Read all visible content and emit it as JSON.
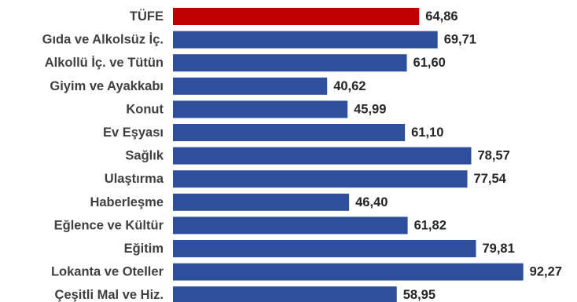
{
  "chart_data": {
    "type": "bar",
    "orientation": "horizontal",
    "title": "",
    "xlabel": "",
    "ylabel": "",
    "grid": false,
    "legend": "none",
    "xlim": [
      0,
      100
    ],
    "categories": [
      "TÜFE",
      "Gıda ve Alkolsüz İç.",
      "Alkollü İç. ve Tütün",
      "Giyim ve Ayakkabı",
      "Konut",
      "Ev Eşyası",
      "Sağlık",
      "Ulaştırma",
      "Haberleşme",
      "Eğlence ve Kültür",
      "Eğitim",
      "Lokanta ve Oteller",
      "Çeşitli Mal ve Hiz."
    ],
    "values": [
      64.86,
      69.71,
      61.6,
      40.62,
      45.99,
      61.1,
      78.57,
      77.54,
      46.4,
      61.82,
      79.81,
      92.27,
      58.95
    ],
    "value_labels": [
      "64,86",
      "69,71",
      "61,60",
      "40,62",
      "45,99",
      "61,10",
      "78,57",
      "77,54",
      "46,40",
      "61,82",
      "79,81",
      "92,27",
      "58,95"
    ],
    "colors": {
      "highlight": "#c00000",
      "default": "#2e4f9b"
    },
    "highlight_index": 0
  }
}
